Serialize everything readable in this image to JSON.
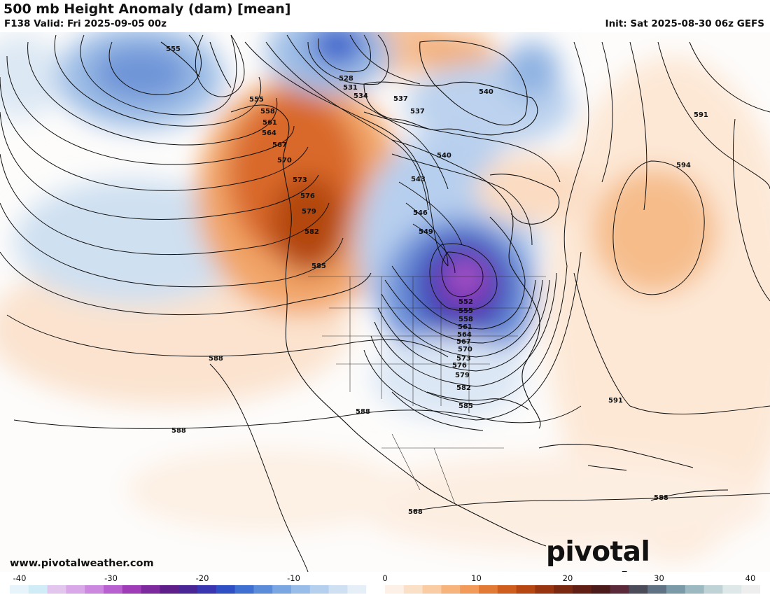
{
  "header": {
    "title": "500 mb Height Anomaly (dam) [mean]",
    "valid": "F138 Valid: Fri 2025-09-05 00z",
    "init": "Init: Sat 2025-08-30 06z GEFS"
  },
  "footer": {
    "url": "www.pivotalweather.com",
    "logo": "pivotal weather"
  },
  "colorbar": {
    "ticks": [
      "-40",
      "-30",
      "-20",
      "-10",
      "0",
      "10",
      "20",
      "30",
      "40"
    ],
    "colors": [
      "#e7f4fb",
      "#d0ecf7",
      "#e2c6ee",
      "#d8a8e8",
      "#cc88df",
      "#b960d0",
      "#9f3cb8",
      "#7d2a9e",
      "#5f1f8a",
      "#4a2596",
      "#3a35b0",
      "#2f4fc4",
      "#3f6fd0",
      "#5b8cda",
      "#7aa7e2",
      "#98bde8",
      "#b5d0ee",
      "#d0e0f3",
      "#e6eef8",
      "#ffffff",
      "#fdf0e6",
      "#fbe0c8",
      "#f9cca3",
      "#f6b37c",
      "#f19a59",
      "#e27a36",
      "#cf5e1e",
      "#b64712",
      "#983510",
      "#7a2810",
      "#611e14",
      "#4b1a1a",
      "#5a2a3a",
      "#4b4b5a",
      "#5f7385",
      "#7a9aa8",
      "#9cb8c0",
      "#bfd3d6",
      "#dfe8e8",
      "#eeeeee"
    ]
  },
  "contour_labels": [
    "555",
    "555",
    "558",
    "561",
    "564",
    "567",
    "570",
    "573",
    "576",
    "579",
    "582",
    "585",
    "528",
    "531",
    "534",
    "537",
    "537",
    "540",
    "540",
    "543",
    "546",
    "549",
    "552",
    "555",
    "558",
    "561",
    "564",
    "567",
    "570",
    "573",
    "576",
    "579",
    "582",
    "585",
    "588",
    "588",
    "588",
    "588",
    "588",
    "591",
    "591",
    "594"
  ]
}
